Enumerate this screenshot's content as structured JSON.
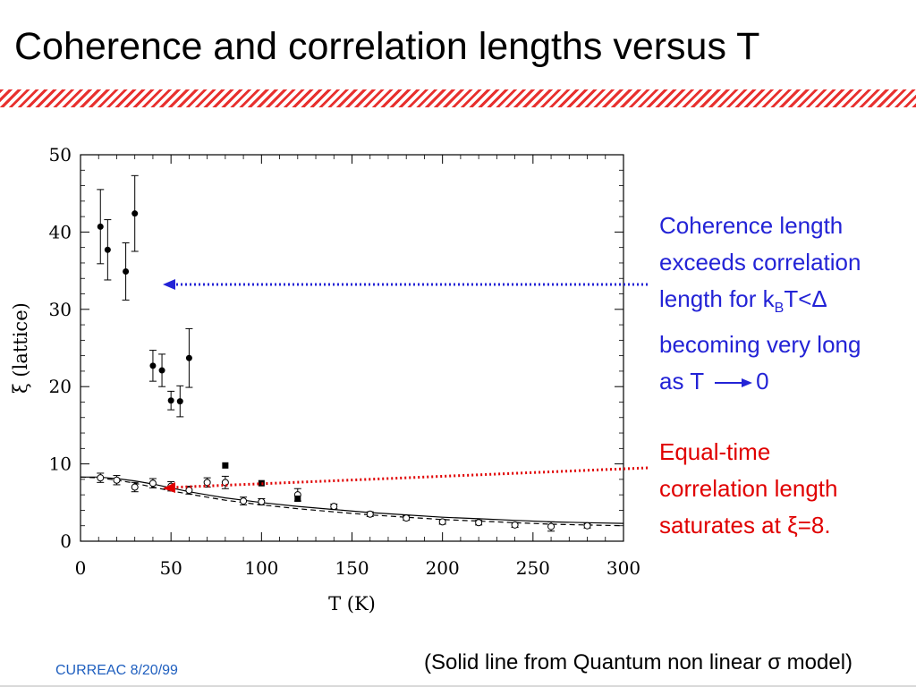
{
  "slide": {
    "title": "Coherence and correlation lengths versus T",
    "footer_left": "CURREAC 8/20/99",
    "footer_right": "(Solid line from Quantum non linear σ model)"
  },
  "annotations": {
    "blue": {
      "line1": "Coherence length",
      "line2": "exceeds correlation",
      "line3_pre": "length for k",
      "line3_sub": "B",
      "line3_post": "T<Δ",
      "line4": "becoming very long",
      "line5_pre": "as T",
      "line5_post": "0",
      "color": "#2323d6"
    },
    "red": {
      "line1": "Equal-time",
      "line2": "correlation length",
      "line3": "saturates at ξ=8.",
      "color": "#e00000"
    }
  },
  "chart_data": {
    "type": "scatter",
    "xlabel": "T (K)",
    "ylabel": "ξ (lattice)",
    "xlim": [
      0,
      300
    ],
    "ylim": [
      0,
      50
    ],
    "xticks": [
      0,
      50,
      100,
      150,
      200,
      250,
      300
    ],
    "yticks": [
      0,
      10,
      20,
      30,
      40,
      50
    ],
    "grid": false,
    "series": [
      {
        "marker": "filled-circle",
        "x": [
          11,
          15,
          25,
          30,
          40,
          45,
          50,
          55,
          60
        ],
        "y": [
          40.7,
          37.7,
          34.9,
          42.4,
          22.7,
          22.1,
          18.2,
          18.1,
          23.7
        ],
        "err": [
          4.8,
          3.9,
          3.7,
          4.9,
          2.0,
          2.1,
          1.2,
          2.0,
          3.8
        ]
      },
      {
        "marker": "open-circle",
        "x": [
          11,
          20,
          30,
          40,
          50,
          60,
          70,
          80,
          90,
          100,
          120,
          140,
          160,
          180,
          200,
          220,
          240,
          260,
          280
        ],
        "y": [
          8.2,
          7.9,
          7.0,
          7.5,
          7.1,
          6.6,
          7.6,
          7.6,
          5.2,
          5.1,
          6.0,
          4.5,
          3.5,
          3.0,
          2.5,
          2.4,
          2.1,
          1.9,
          2.0
        ],
        "err": [
          0.6,
          0.6,
          0.6,
          0.6,
          0.6,
          0.5,
          0.6,
          0.8,
          0.5,
          0.4,
          0.8,
          0.3,
          0.3,
          0.3,
          0.3,
          0.3,
          0.3,
          0.6,
          0.3
        ]
      },
      {
        "marker": "filled-square",
        "x": [
          80,
          100,
          120
        ],
        "y": [
          9.8,
          7.5,
          5.5
        ],
        "err": []
      }
    ],
    "curves": [
      {
        "style": "solid",
        "x": [
          0,
          10,
          20,
          30,
          40,
          50,
          60,
          70,
          80,
          90,
          100,
          120,
          140,
          160,
          180,
          200,
          220,
          240,
          260,
          280,
          300
        ],
        "y": [
          8.3,
          8.3,
          8.1,
          7.8,
          7.4,
          6.9,
          6.4,
          6.0,
          5.6,
          5.3,
          5.0,
          4.5,
          4.1,
          3.7,
          3.4,
          3.1,
          2.9,
          2.7,
          2.5,
          2.4,
          2.3
        ]
      },
      {
        "style": "dashed",
        "x": [
          0,
          10,
          20,
          30,
          40,
          50,
          60,
          70,
          80,
          90,
          100,
          120,
          140,
          160,
          180,
          200,
          220,
          240,
          260,
          280,
          300
        ],
        "y": [
          8.3,
          8.2,
          7.9,
          7.5,
          7.0,
          6.5,
          6.1,
          5.7,
          5.3,
          5.0,
          4.7,
          4.2,
          3.8,
          3.4,
          3.1,
          2.8,
          2.6,
          2.4,
          2.2,
          2.1,
          2.0
        ]
      }
    ]
  }
}
